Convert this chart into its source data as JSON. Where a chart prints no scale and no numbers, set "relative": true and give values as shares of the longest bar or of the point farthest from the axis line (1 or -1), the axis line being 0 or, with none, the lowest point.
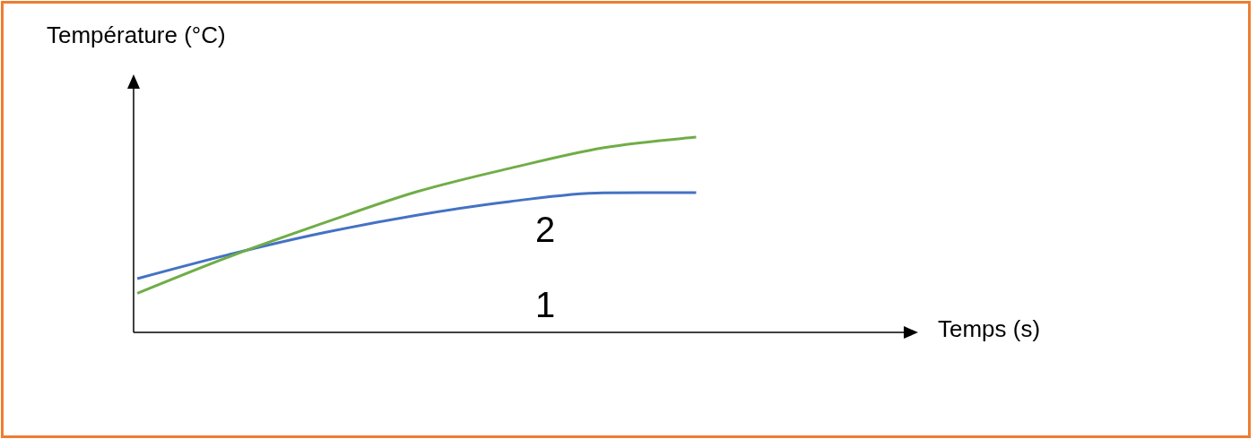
{
  "chart_data": {
    "type": "line",
    "relative": true,
    "xlabel": "Temps (s)",
    "ylabel": "Température (°C)",
    "annotations": [
      "2",
      "1"
    ],
    "categories": [
      null,
      null,
      null,
      null,
      null,
      null,
      null,
      null,
      null
    ],
    "marker": "none",
    "line_style": "solid",
    "legend": false,
    "grid": false,
    "series": [
      {
        "color": "#4472c4",
        "values": [
          0.275,
          0.4,
          0.51,
          0.6,
          0.67,
          0.715,
          0.716,
          null,
          null
        ]
      },
      {
        "color": "#70ad47",
        "values": [
          0.2,
          0.39,
          0.56,
          0.72,
          0.84,
          0.945,
          1.0,
          null,
          null
        ]
      }
    ]
  }
}
